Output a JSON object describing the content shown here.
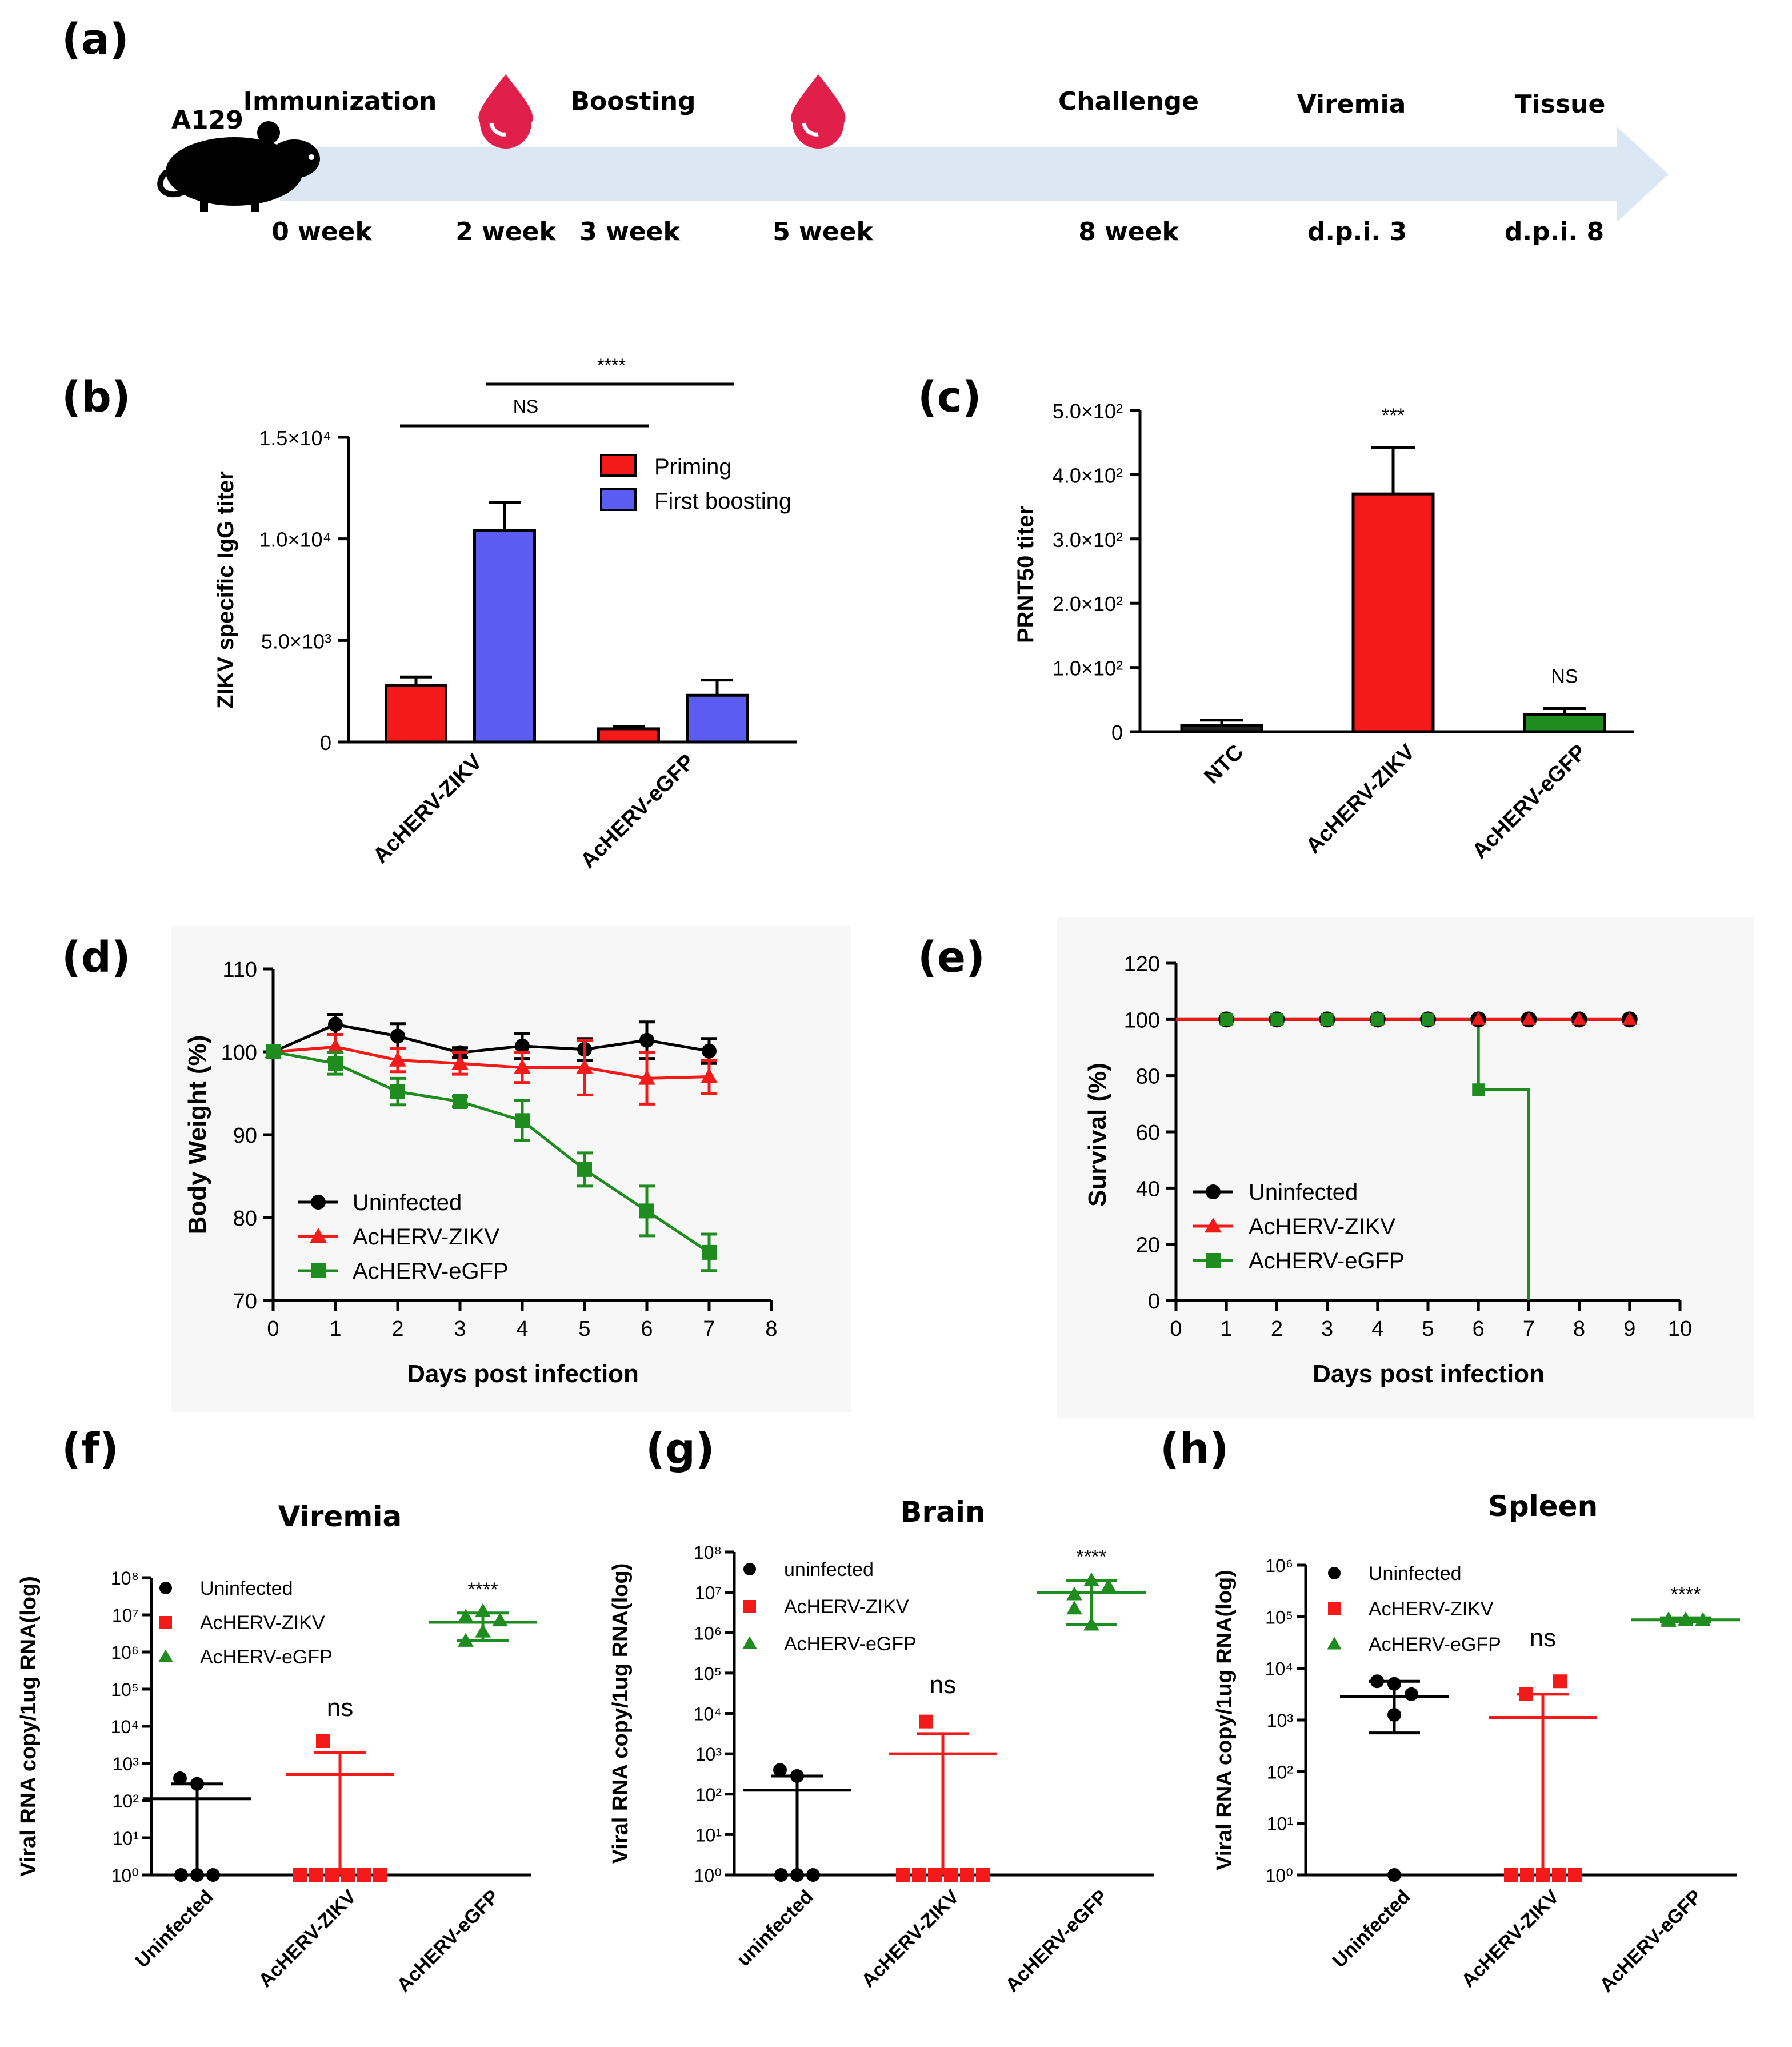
{
  "panels": {
    "a": "(a)",
    "b": "(b)",
    "c": "(c)",
    "d": "(d)",
    "e": "(e)",
    "f": "(f)",
    "g": "(g)",
    "h": "(h)"
  },
  "timeline": {
    "animal": "A129",
    "events": [
      {
        "label": "Immunization",
        "time": "0 week"
      },
      {
        "label": "",
        "time": "2 week",
        "blood": true
      },
      {
        "label": "Boosting",
        "time": "3 week"
      },
      {
        "label": "",
        "time": "5 week",
        "blood": true
      },
      {
        "label": "Challenge",
        "time": "8 week"
      },
      {
        "label": "Viremia",
        "time": "d.p.i. 3"
      },
      {
        "label": "Tissue",
        "time": "d.p.i. 8"
      }
    ]
  },
  "chart_data": [
    {
      "panel": "b",
      "type": "bar",
      "title": "",
      "ylabel": "ZIKV specific IgG titer",
      "ylim": [
        0,
        15000
      ],
      "yticks": [
        "0",
        "5.0×10³",
        "1.0×10⁴",
        "1.5×10⁴"
      ],
      "yticks_values": [
        0,
        5000,
        10000,
        15000
      ],
      "categories": [
        "AcHERV-ZIKV",
        "AcHERV-eGFP"
      ],
      "series": [
        {
          "name": "Priming",
          "color": "#f51a1a",
          "values": [
            2800,
            650
          ],
          "errors": [
            400,
            100
          ]
        },
        {
          "name": "First boosting",
          "color": "#5a5cf2",
          "values": [
            10400,
            2300
          ],
          "errors": [
            1400,
            750
          ]
        }
      ],
      "annotations": [
        "NS",
        "****"
      ]
    },
    {
      "panel": "c",
      "type": "bar",
      "ylabel": "PRNT50 titer",
      "ylim": [
        0,
        500
      ],
      "yticks": [
        "0",
        "1.0×10²",
        "2.0×10²",
        "3.0×10²",
        "4.0×10²",
        "5.0×10²"
      ],
      "yticks_values": [
        0,
        100,
        200,
        300,
        400,
        500
      ],
      "categories": [
        "NTC",
        "AcHERV-ZIKV",
        "AcHERV-eGFP"
      ],
      "values": [
        10,
        370,
        27
      ],
      "errors": [
        8,
        72,
        9
      ],
      "colors": [
        "#202020",
        "#f51a1a",
        "#1e8c1e"
      ],
      "annotations": [
        "",
        "***",
        "NS"
      ]
    },
    {
      "panel": "d",
      "type": "line",
      "xlabel": "Days post infection",
      "ylabel": "Body Weight (%)",
      "xlim": [
        0,
        8
      ],
      "ylim": [
        70,
        110
      ],
      "xticks": [
        "0",
        "1",
        "2",
        "3",
        "4",
        "5",
        "6",
        "7",
        "8"
      ],
      "yticks": [
        "70",
        "80",
        "90",
        "100",
        "110"
      ],
      "x": [
        0,
        1,
        2,
        3,
        4,
        5,
        6,
        7
      ],
      "series": [
        {
          "name": "Uninfected",
          "color": "#000000",
          "marker": "circle",
          "values": [
            100,
            103.3,
            101.9,
            99.9,
            100.7,
            100.3,
            101.4,
            100.1
          ],
          "errors": [
            0,
            1.2,
            1.5,
            0.6,
            1.5,
            1.3,
            2.2,
            1.5
          ]
        },
        {
          "name": "AcHERV-ZIKV",
          "color": "#f51a1a",
          "marker": "triangle",
          "values": [
            100,
            100.6,
            99.0,
            98.6,
            98.1,
            98.1,
            96.8,
            97.0
          ],
          "errors": [
            0,
            1.5,
            1.4,
            1.3,
            1.8,
            3.3,
            3.1,
            2.0
          ]
        },
        {
          "name": "AcHERV-eGFP",
          "color": "#1e8c1e",
          "marker": "square",
          "values": [
            100,
            98.6,
            95.2,
            94.0,
            91.7,
            85.8,
            80.8,
            75.8
          ],
          "errors": [
            0,
            1.3,
            1.6,
            0.6,
            2.4,
            2.0,
            3.0,
            2.2
          ]
        }
      ]
    },
    {
      "panel": "e",
      "type": "line",
      "xlabel": "Days post infection",
      "ylabel": "Survival (%)",
      "xlim": [
        0,
        10
      ],
      "ylim": [
        0,
        120
      ],
      "xticks": [
        "0",
        "1",
        "2",
        "3",
        "4",
        "5",
        "6",
        "7",
        "8",
        "9",
        "10"
      ],
      "yticks": [
        "0",
        "20",
        "40",
        "60",
        "80",
        "100",
        "120"
      ],
      "series": [
        {
          "name": "Uninfected",
          "color": "#000000",
          "marker": "circle",
          "x": [
            1,
            2,
            3,
            4,
            5,
            6,
            7,
            8,
            9
          ],
          "values": [
            100,
            100,
            100,
            100,
            100,
            100,
            100,
            100,
            100
          ]
        },
        {
          "name": "AcHERV-ZIKV",
          "color": "#f51a1a",
          "marker": "triangle",
          "x": [
            1,
            2,
            3,
            4,
            5,
            6,
            7,
            8,
            9
          ],
          "values": [
            100,
            100,
            100,
            100,
            100,
            100,
            100,
            100,
            100
          ]
        },
        {
          "name": "AcHERV-eGFP",
          "color": "#1e8c1e",
          "marker": "square",
          "x": [
            1,
            2,
            3,
            4,
            5,
            6,
            7
          ],
          "values": [
            100,
            100,
            100,
            100,
            100,
            75,
            0
          ]
        }
      ]
    },
    {
      "panel": "f",
      "type": "scatter",
      "title": "Viremia",
      "ylabel": "Viral RNA copy/1ug RNA(log)",
      "ylim_log10": [
        0,
        8
      ],
      "yticks": [
        "10⁰",
        "10¹",
        "10²",
        "10³",
        "10⁴",
        "10⁵",
        "10⁶",
        "10⁷",
        "10⁸"
      ],
      "categories": [
        "Uninfected",
        "AcHERV-ZIKV",
        "AcHERV-eGFP"
      ],
      "groups": [
        {
          "name": "Uninfected",
          "color": "#000000",
          "marker": "circle",
          "log_values": [
            0,
            0,
            0,
            2.6,
            2.45
          ],
          "mean_log": 2.05,
          "err_low_log": 0,
          "err_high_log": 2.45
        },
        {
          "name": "AcHERV-ZIKV",
          "color": "#f51a1a",
          "marker": "square",
          "log_values": [
            0,
            0,
            0,
            0,
            0,
            0,
            3.6
          ],
          "mean_log": 2.7,
          "err_low_log": 0,
          "err_high_log": 3.3
        },
        {
          "name": "AcHERV-eGFP",
          "color": "#1e8c1e",
          "marker": "triangle",
          "log_values": [
            6.3,
            6.55,
            6.85,
            6.95,
            7.1
          ],
          "mean_log": 6.8,
          "err_low_log": 6.3,
          "err_high_log": 7.05
        }
      ],
      "annotations": [
        "",
        "ns",
        "****"
      ]
    },
    {
      "panel": "g",
      "type": "scatter",
      "title": "Brain",
      "ylabel": "Viral RNA copy/1ug RNA(log)",
      "ylim_log10": [
        0,
        8
      ],
      "yticks": [
        "10⁰",
        "10¹",
        "10²",
        "10³",
        "10⁴",
        "10⁵",
        "10⁶",
        "10⁷",
        "10⁸"
      ],
      "categories": [
        "uninfected",
        "AcHERV-ZIKV",
        "AcHERV-eGFP"
      ],
      "groups": [
        {
          "name": "uninfected",
          "color": "#000000",
          "marker": "circle",
          "log_values": [
            0,
            0,
            0,
            2.6,
            2.45
          ],
          "mean_log": 2.1,
          "err_low_log": 0,
          "err_high_log": 2.45
        },
        {
          "name": "AcHERV-ZIKV",
          "color": "#f51a1a",
          "marker": "square",
          "log_values": [
            0,
            0,
            0,
            0,
            0,
            0,
            3.8
          ],
          "mean_log": 3.0,
          "err_low_log": 0,
          "err_high_log": 3.5
        },
        {
          "name": "AcHERV-eGFP",
          "color": "#1e8c1e",
          "marker": "triangle",
          "log_values": [
            6.6,
            6.2,
            7.15,
            6.95,
            7.3
          ],
          "mean_log": 7.0,
          "err_low_log": 6.2,
          "err_high_log": 7.3
        }
      ],
      "annotations": [
        "",
        "ns",
        "****"
      ]
    },
    {
      "panel": "h",
      "type": "scatter",
      "title": "Spleen",
      "ylabel": "Viral RNA copy/1ug RNA(log)",
      "ylim_log10": [
        0,
        6
      ],
      "yticks": [
        "10⁰",
        "10¹",
        "10²",
        "10³",
        "10⁴",
        "10⁵",
        "10⁶"
      ],
      "categories": [
        "Uninfected",
        "AcHERV-ZIKV",
        "AcHERV-eGFP"
      ],
      "groups": [
        {
          "name": "Uninfected",
          "color": "#000000",
          "marker": "circle",
          "log_values": [
            0,
            3.1,
            3.5,
            3.75,
            3.7
          ],
          "mean_log": 3.45,
          "err_low_log": 2.75,
          "err_high_log": 3.75
        },
        {
          "name": "AcHERV-ZIKV",
          "color": "#f51a1a",
          "marker": "square",
          "log_values": [
            0,
            0,
            0,
            0,
            0,
            3.75,
            3.5
          ],
          "mean_log": 3.05,
          "err_low_log": 0,
          "err_high_log": 3.5
        },
        {
          "name": "AcHERV-eGFP",
          "color": "#1e8c1e",
          "marker": "triangle",
          "log_values": [
            4.95,
            4.93,
            4.94,
            4.92,
            4.95,
            4.93
          ],
          "mean_log": 4.94,
          "err_low_log": 4.9,
          "err_high_log": 4.98
        }
      ],
      "annotations": [
        "",
        "ns",
        "****"
      ]
    }
  ]
}
